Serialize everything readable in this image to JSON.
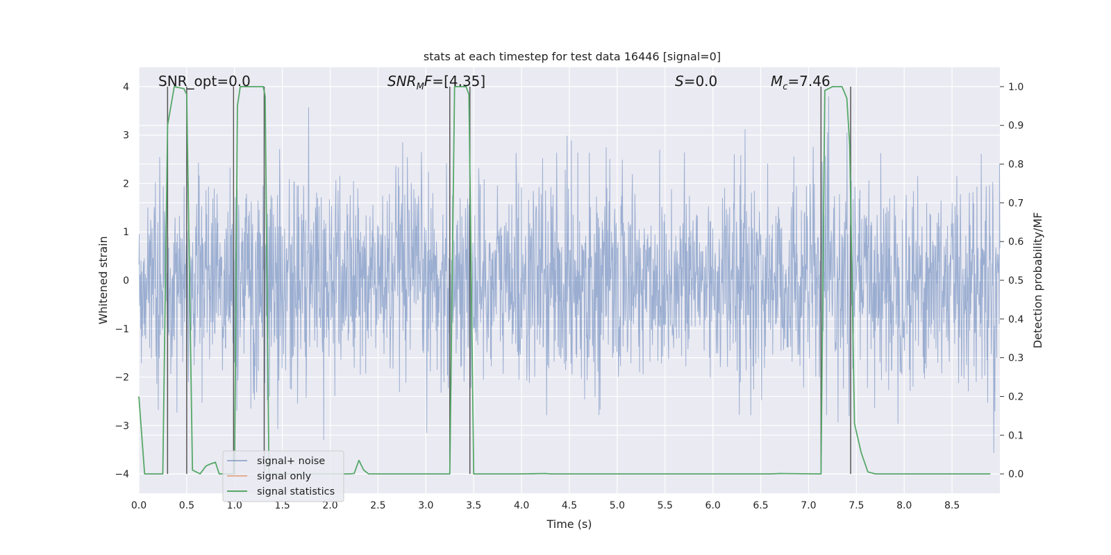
{
  "colors": {
    "figure_background": "#ffffff",
    "plot_background": "#eaeaf2",
    "grid": "#ffffff",
    "signal_noise": "#4c72b0",
    "signal_only": "#dd8452",
    "signal_statistics": "#55a868",
    "vertical_markers": "#555555"
  },
  "chart_data": {
    "type": "line",
    "title": "stats at each timestep for test data 16446 [signal=0]",
    "xlabel": "Time (s)",
    "ylabel_left": "Whitened strain",
    "ylabel_right": "Detection probability/MF",
    "xlim": [
      0.0,
      9.0
    ],
    "ylim_left": [
      -4.4,
      4.4
    ],
    "ylim_right": [
      -0.05,
      1.05
    ],
    "x_ticks": [
      0.0,
      0.5,
      1.0,
      1.5,
      2.0,
      2.5,
      3.0,
      3.5,
      4.0,
      4.5,
      5.0,
      5.5,
      6.0,
      6.5,
      7.0,
      7.5,
      8.0,
      8.5
    ],
    "x_tick_labels": [
      "0.0",
      "0.5",
      "1.0",
      "1.5",
      "2.0",
      "2.5",
      "3.0",
      "3.5",
      "4.0",
      "4.5",
      "5.0",
      "5.5",
      "6.0",
      "6.5",
      "7.0",
      "7.5",
      "8.0",
      "8.5"
    ],
    "y_left_ticks": [
      4,
      3,
      2,
      1,
      0,
      -1,
      -2,
      -3,
      -4
    ],
    "y_left_tick_labels": [
      "4",
      "3",
      "2",
      "1",
      "0",
      "−1",
      "−2",
      "−3",
      "−4"
    ],
    "y_right_ticks": [
      1.0,
      0.9,
      0.8,
      0.7,
      0.6,
      0.5,
      0.4,
      0.3,
      0.2,
      0.1,
      0.0
    ],
    "y_right_tick_labels": [
      "1.0",
      "0.9",
      "0.8",
      "0.7",
      "0.6",
      "0.5",
      "0.4",
      "0.3",
      "0.2",
      "0.1",
      "0.0"
    ],
    "grid": true,
    "legend_position": "lower-left",
    "legend": [
      {
        "label": "signal+ noise",
        "color": "#4c72b0"
      },
      {
        "label": "signal only",
        "color": "#dd8452"
      },
      {
        "label": "signal statistics",
        "color": "#55a868"
      }
    ],
    "annotations": {
      "snr_opt": "SNR_opt=0.0",
      "snr_mf": "[4.35]",
      "s": "=0.0",
      "mc": "=7.46"
    },
    "noise_series": {
      "name": "signal+ noise",
      "x_range": [
        0.0,
        9.0
      ],
      "typical_band": [
        -1.6,
        1.6
      ],
      "peak_range": [
        -3.6,
        3.8
      ]
    },
    "statistics_series": {
      "name": "signal statistics",
      "x": [
        0.0,
        0.06,
        0.15,
        0.25,
        0.3,
        0.37,
        0.47,
        0.5,
        0.56,
        0.64,
        0.7,
        0.74,
        0.8,
        0.84,
        0.98,
        1.0,
        1.03,
        1.06,
        1.3,
        1.32,
        1.36,
        1.42,
        2.2,
        2.25,
        2.3,
        2.35,
        2.4,
        2.5,
        3.2,
        3.25,
        3.3,
        3.42,
        3.45,
        3.5,
        3.6,
        4.0,
        4.25,
        4.3,
        6.6,
        6.7,
        7.1,
        7.13,
        7.17,
        7.25,
        7.35,
        7.4,
        7.43,
        7.48,
        7.55,
        7.62,
        7.7,
        8.9
      ],
      "y": [
        0.2,
        0.0,
        0.0,
        0.0,
        0.9,
        1.0,
        0.995,
        0.98,
        0.01,
        0.0,
        0.02,
        0.025,
        0.03,
        0.0,
        0.0,
        0.0,
        0.95,
        1.0,
        1.0,
        0.975,
        0.0,
        0.0,
        0.0,
        0.001,
        0.035,
        0.01,
        0.0,
        0.0,
        0.0,
        0.0,
        1.0,
        1.0,
        0.98,
        0.0,
        0.0,
        0.0,
        0.001,
        0.0,
        0.0,
        0.001,
        0.0,
        0.0,
        0.99,
        1.0,
        1.0,
        0.97,
        0.85,
        0.13,
        0.055,
        0.005,
        0.0,
        0.0
      ]
    },
    "vertical_markers_x": [
      0.3,
      0.5,
      0.99,
      1.31,
      3.25,
      3.46,
      7.13,
      7.44
    ]
  }
}
